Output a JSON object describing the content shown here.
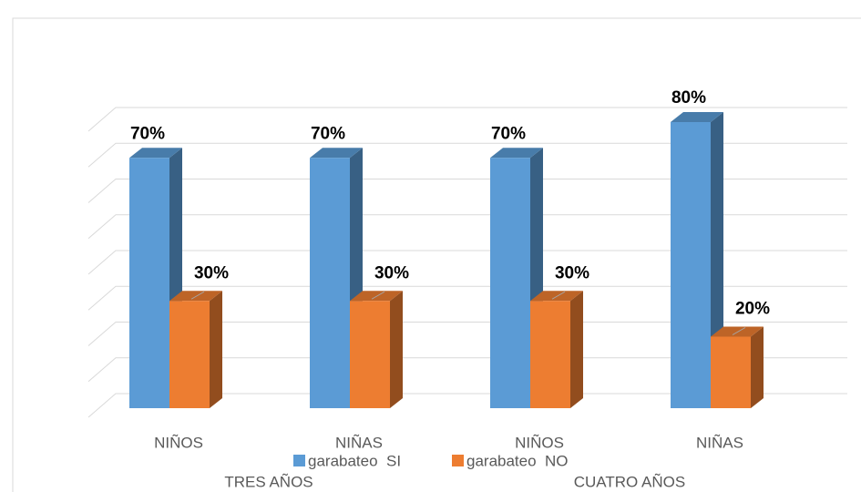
{
  "chart_data": {
    "type": "bar3d",
    "categories": [
      "NIÑOS",
      "NIÑAS",
      "NIÑOS",
      "NIÑAS"
    ],
    "group_labels": [
      "TRES AÑOS",
      "CUATRO AÑOS"
    ],
    "series": [
      {
        "name": "garabateo  SI",
        "color": "#5b9bd5",
        "values": [
          70,
          70,
          70,
          80
        ],
        "value_labels": [
          "70%",
          "70%",
          "70%",
          "80%"
        ]
      },
      {
        "name": "garabateo  NO",
        "color": "#ed7d31",
        "values": [
          30,
          30,
          30,
          20
        ],
        "value_labels": [
          "30%",
          "30%",
          "30%",
          "20%"
        ]
      }
    ],
    "ylim": [
      0,
      80
    ],
    "yticks": [
      0,
      10,
      20,
      30,
      40,
      50,
      60,
      70,
      80
    ],
    "grid": true
  }
}
